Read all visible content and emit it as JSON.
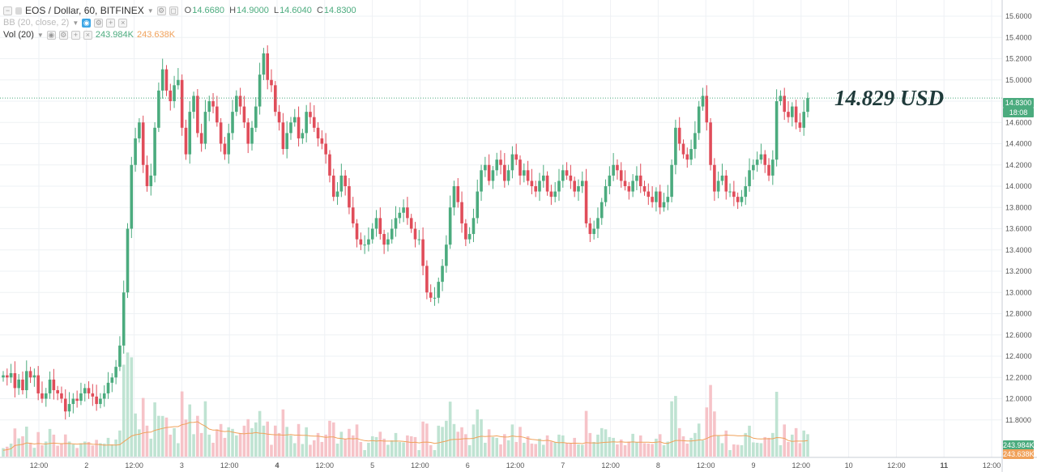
{
  "legend": {
    "symbol": "EOS / Dollar, 60, BITFINEX",
    "open_label": "O",
    "open": "14.6680",
    "high_label": "H",
    "high": "14.9000",
    "low_label": "L",
    "low": "14.6040",
    "close_label": "C",
    "close": "14.8300",
    "bb_label": "BB (20, close, 2)",
    "vol_label": "Vol (20)",
    "vol_value": "243.984K",
    "vol_ma_value": "243.638K"
  },
  "annotation": "14.829 USD",
  "price_badge": {
    "price": "14.8300",
    "countdown": "18:08"
  },
  "volume_badges": {
    "volume": "243.984K",
    "ma": "243.638K"
  },
  "colors": {
    "up": "#4bab7e",
    "down": "#e04d5a",
    "vol_up": "#bfe3d2",
    "vol_down": "#f6c3c8",
    "vol_ma": "#f0a15a",
    "grid": "#eef1f4",
    "axis_text": "#555555"
  },
  "chart_data": {
    "type": "candlestick",
    "title": "EOS / Dollar, 60, BITFINEX",
    "interval": "60",
    "y_axis": {
      "min": 11.6,
      "max": 15.6,
      "ticks": [
        "15.6000",
        "15.4000",
        "15.2000",
        "15.0000",
        "14.8000",
        "14.6000",
        "14.4000",
        "14.2000",
        "14.0000",
        "13.8000",
        "13.6000",
        "13.4000",
        "13.2000",
        "13.0000",
        "12.8000",
        "12.6000",
        "12.4000",
        "12.2000",
        "12.0000",
        "11.8000"
      ]
    },
    "x_ticks": [
      "12:00",
      "2",
      "12:00",
      "3",
      "12:00",
      "4",
      "12:00",
      "5",
      "12:00",
      "6",
      "12:00",
      "7",
      "12:00",
      "8",
      "12:00",
      "9",
      "12:00",
      "10",
      "12:00",
      "11",
      "12:00"
    ],
    "bold_x_ticks": [
      "4",
      "11"
    ],
    "last_close": 14.83,
    "candles_close": [
      12.22,
      12.2,
      12.24,
      12.1,
      12.18,
      12.08,
      12.26,
      12.2,
      12.22,
      12.05,
      12.0,
      12.05,
      12.18,
      12.08,
      12.05,
      12.0,
      11.88,
      11.95,
      12.0,
      11.98,
      12.05,
      12.1,
      12.05,
      12.02,
      11.95,
      12.0,
      12.05,
      12.15,
      12.2,
      12.3,
      12.5,
      13.0,
      13.6,
      14.2,
      14.45,
      14.6,
      14.2,
      14.0,
      14.1,
      14.55,
      14.9,
      15.1,
      14.9,
      14.8,
      14.95,
      15.0,
      14.55,
      14.3,
      14.7,
      14.85,
      14.5,
      14.4,
      14.7,
      14.8,
      14.75,
      14.6,
      14.4,
      14.3,
      14.5,
      14.7,
      14.85,
      14.75,
      14.6,
      14.4,
      14.55,
      14.75,
      15.05,
      15.25,
      15.0,
      14.95,
      14.7,
      14.6,
      14.35,
      14.5,
      14.6,
      14.65,
      14.45,
      14.5,
      14.7,
      14.65,
      14.55,
      14.45,
      14.4,
      14.3,
      14.1,
      13.9,
      13.95,
      14.1,
      14.0,
      13.8,
      13.65,
      13.5,
      13.45,
      13.45,
      13.5,
      13.6,
      13.7,
      13.55,
      13.45,
      13.5,
      13.6,
      13.7,
      13.75,
      13.8,
      13.7,
      13.6,
      13.5,
      13.5,
      13.25,
      13.0,
      12.95,
      12.95,
      13.1,
      13.25,
      13.45,
      13.8,
      14.0,
      13.85,
      13.65,
      13.5,
      13.55,
      13.7,
      13.95,
      14.15,
      14.2,
      14.05,
      14.15,
      14.25,
      14.2,
      14.05,
      14.15,
      14.3,
      14.25,
      14.1,
      14.15,
      14.05,
      14.0,
      13.95,
      14.05,
      14.1,
      13.95,
      13.9,
      13.95,
      14.05,
      14.15,
      14.1,
      14.05,
      13.95,
      14.0,
      14.05,
      13.65,
      13.55,
      13.6,
      13.7,
      13.85,
      14.0,
      14.1,
      14.2,
      14.15,
      14.05,
      14.0,
      13.95,
      14.05,
      14.1,
      14.0,
      13.95,
      13.9,
      13.85,
      13.95,
      13.8,
      13.85,
      13.9,
      14.2,
      14.55,
      14.4,
      14.3,
      14.25,
      14.35,
      14.5,
      14.75,
      14.85,
      14.6,
      14.2,
      13.95,
      14.05,
      14.1,
      13.95,
      13.95,
      13.9,
      13.85,
      13.9,
      14.0,
      14.15,
      14.2,
      14.25,
      14.3,
      14.2,
      14.1,
      14.25,
      14.8,
      14.85,
      14.7,
      14.65,
      14.75,
      14.6,
      14.55,
      14.7,
      14.83
    ],
    "volume_peaks": {
      "max_shown": "12.4K scale",
      "ma_level": "243.638K"
    }
  }
}
